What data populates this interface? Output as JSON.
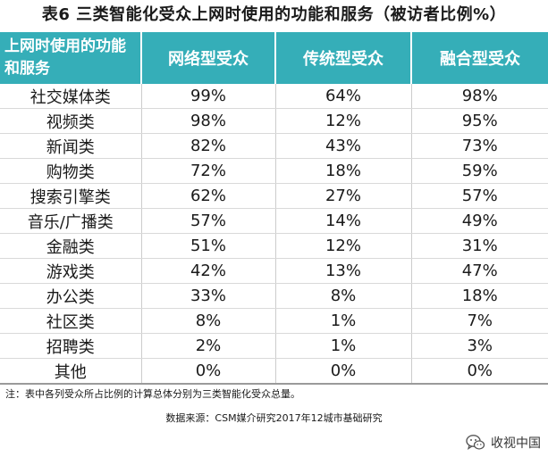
{
  "title": "表6 三类智能化受众上网时使用的功能和服务（被访者比例%）",
  "table": {
    "row_header": "上网时使用的功能和服务",
    "columns": [
      "网络型受众",
      "传统型受众",
      "融合型受众"
    ],
    "header_color": "#35aeb8",
    "rows": [
      {
        "label": "社交媒体类",
        "values": [
          "99%",
          "64%",
          "98%"
        ]
      },
      {
        "label": "视频类",
        "values": [
          "98%",
          "12%",
          "95%"
        ]
      },
      {
        "label": "新闻类",
        "values": [
          "82%",
          "43%",
          "73%"
        ]
      },
      {
        "label": "购物类",
        "values": [
          "72%",
          "18%",
          "59%"
        ]
      },
      {
        "label": "搜索引擎类",
        "values": [
          "62%",
          "27%",
          "57%"
        ]
      },
      {
        "label": "音乐/广播类",
        "values": [
          "57%",
          "14%",
          "49%"
        ]
      },
      {
        "label": "金融类",
        "values": [
          "51%",
          "12%",
          "31%"
        ]
      },
      {
        "label": "游戏类",
        "values": [
          "42%",
          "13%",
          "47%"
        ]
      },
      {
        "label": "办公类",
        "values": [
          "33%",
          "8%",
          "18%"
        ]
      },
      {
        "label": "社区类",
        "values": [
          "8%",
          "1%",
          "7%"
        ]
      },
      {
        "label": "招聘类",
        "values": [
          "2%",
          "1%",
          "3%"
        ]
      },
      {
        "label": "其他",
        "values": [
          "0%",
          "0%",
          "0%"
        ]
      }
    ]
  },
  "note": "注：表中各列受众所占比例的计算总体分别为三类智能化受众总量。",
  "source": "数据来源：CSM媒介研究2017年12城市基础研究",
  "watermark": {
    "text": "收视中国",
    "icon": "wechat-icon"
  }
}
